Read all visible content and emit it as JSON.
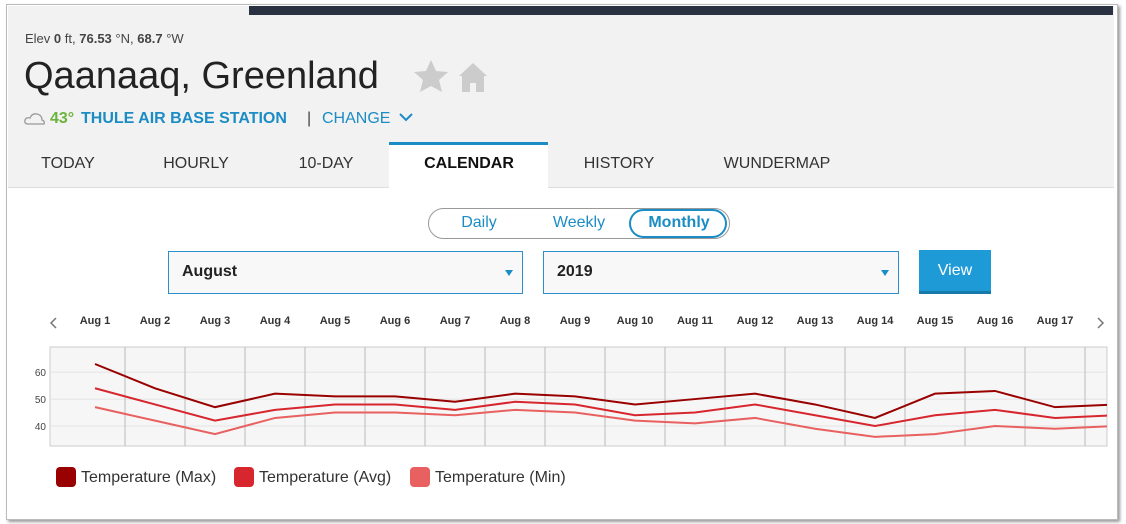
{
  "header": {
    "elev_label": "Elev",
    "elev_value": "0",
    "elev_unit": "ft,",
    "lat_value": "76.53",
    "lat_unit": "°N,",
    "lon_value": "68.7",
    "lon_unit": "°W",
    "title": "Qaanaaq, Greenland",
    "current_temp": "43°",
    "station": "THULE AIR BASE STATION",
    "separator": "|",
    "change": "CHANGE"
  },
  "tabs": [
    "TODAY",
    "HOURLY",
    "10-DAY",
    "CALENDAR",
    "HISTORY",
    "WUNDERMAP"
  ],
  "active_tab": "CALENDAR",
  "toggle": [
    "Daily",
    "Weekly",
    "Monthly"
  ],
  "active_toggle": "Monthly",
  "month_select": "August",
  "year_select": "2019",
  "view_button": "View",
  "chart_data": {
    "type": "line",
    "categories": [
      "Aug 1",
      "Aug 2",
      "Aug 3",
      "Aug 4",
      "Aug 5",
      "Aug 6",
      "Aug 7",
      "Aug 8",
      "Aug 9",
      "Aug 10",
      "Aug 11",
      "Aug 12",
      "Aug 13",
      "Aug 14",
      "Aug 15",
      "Aug 16",
      "Aug 17",
      null
    ],
    "series": [
      {
        "name": "Temperature (Max)",
        "color": "#990000",
        "values": [
          63,
          54,
          47,
          52,
          51,
          51,
          49,
          52,
          51,
          48,
          50,
          52,
          48,
          43,
          52,
          53,
          47,
          48
        ]
      },
      {
        "name": "Temperature (Avg)",
        "color": "#d7262e",
        "values": [
          54,
          48,
          42,
          46,
          48,
          48,
          46,
          49,
          48,
          44,
          45,
          48,
          44,
          40,
          44,
          46,
          43,
          44
        ]
      },
      {
        "name": "Temperature (Min)",
        "color": "#e86060",
        "values": [
          47,
          42,
          37,
          43,
          45,
          45,
          44,
          46,
          45,
          42,
          41,
          43,
          39,
          36,
          37,
          40,
          39,
          40
        ]
      }
    ],
    "ylim": [
      32.6,
      69.3
    ],
    "yticks": [
      40,
      50,
      60
    ],
    "grid": true
  }
}
